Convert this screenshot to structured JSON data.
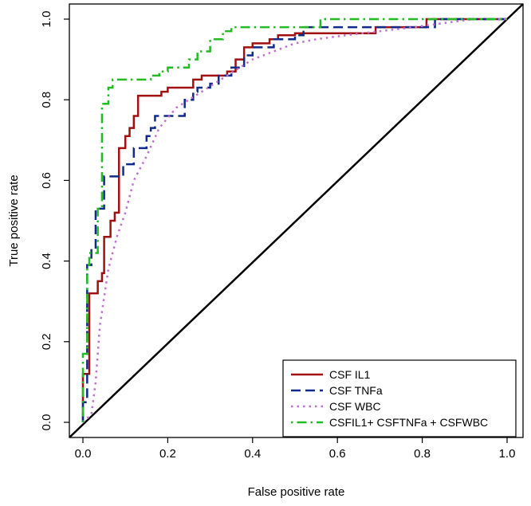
{
  "chart_data": {
    "type": "line",
    "title": "",
    "xlabel": "False positive rate",
    "ylabel": "True positive rate",
    "xlim": [
      0,
      1
    ],
    "ylim": [
      0,
      1
    ],
    "xticks": [
      "0.0",
      "0.2",
      "0.4",
      "0.6",
      "0.8",
      "1.0"
    ],
    "yticks": [
      "0.0",
      "0.2",
      "0.4",
      "0.6",
      "0.8",
      "1.0"
    ],
    "grid": false,
    "legend_position": "bottom-right",
    "series": [
      {
        "name": "CSF IL1",
        "color": "#a01010",
        "line_style": "solid",
        "points": [
          [
            0,
            0
          ],
          [
            0,
            0.12
          ],
          [
            0.015,
            0.12
          ],
          [
            0.015,
            0.32
          ],
          [
            0.035,
            0.32
          ],
          [
            0.035,
            0.35
          ],
          [
            0.045,
            0.35
          ],
          [
            0.045,
            0.37
          ],
          [
            0.05,
            0.37
          ],
          [
            0.05,
            0.46
          ],
          [
            0.065,
            0.46
          ],
          [
            0.065,
            0.5
          ],
          [
            0.075,
            0.5
          ],
          [
            0.075,
            0.52
          ],
          [
            0.085,
            0.52
          ],
          [
            0.085,
            0.68
          ],
          [
            0.1,
            0.68
          ],
          [
            0.1,
            0.71
          ],
          [
            0.11,
            0.71
          ],
          [
            0.11,
            0.73
          ],
          [
            0.12,
            0.73
          ],
          [
            0.12,
            0.76
          ],
          [
            0.13,
            0.76
          ],
          [
            0.13,
            0.81
          ],
          [
            0.185,
            0.81
          ],
          [
            0.185,
            0.82
          ],
          [
            0.2,
            0.82
          ],
          [
            0.2,
            0.83
          ],
          [
            0.26,
            0.83
          ],
          [
            0.26,
            0.85
          ],
          [
            0.28,
            0.85
          ],
          [
            0.28,
            0.86
          ],
          [
            0.34,
            0.86
          ],
          [
            0.34,
            0.87
          ],
          [
            0.36,
            0.87
          ],
          [
            0.36,
            0.9
          ],
          [
            0.38,
            0.9
          ],
          [
            0.38,
            0.93
          ],
          [
            0.4,
            0.93
          ],
          [
            0.4,
            0.94
          ],
          [
            0.44,
            0.94
          ],
          [
            0.44,
            0.95
          ],
          [
            0.46,
            0.95
          ],
          [
            0.46,
            0.96
          ],
          [
            0.5,
            0.96
          ],
          [
            0.5,
            0.965
          ],
          [
            0.69,
            0.965
          ],
          [
            0.69,
            0.98
          ],
          [
            0.81,
            0.98
          ],
          [
            0.81,
            1.0
          ],
          [
            1.0,
            1.0
          ]
        ]
      },
      {
        "name": "CSF TNFa",
        "color": "#102a8a",
        "line_style": "dashed",
        "points": [
          [
            0,
            0
          ],
          [
            0,
            0.05
          ],
          [
            0.01,
            0.05
          ],
          [
            0.01,
            0.39
          ],
          [
            0.02,
            0.39
          ],
          [
            0.02,
            0.43
          ],
          [
            0.03,
            0.43
          ],
          [
            0.03,
            0.53
          ],
          [
            0.05,
            0.53
          ],
          [
            0.05,
            0.61
          ],
          [
            0.095,
            0.61
          ],
          [
            0.095,
            0.64
          ],
          [
            0.12,
            0.64
          ],
          [
            0.12,
            0.68
          ],
          [
            0.15,
            0.68
          ],
          [
            0.15,
            0.71
          ],
          [
            0.16,
            0.71
          ],
          [
            0.16,
            0.73
          ],
          [
            0.17,
            0.73
          ],
          [
            0.17,
            0.76
          ],
          [
            0.24,
            0.76
          ],
          [
            0.24,
            0.8
          ],
          [
            0.26,
            0.8
          ],
          [
            0.26,
            0.82
          ],
          [
            0.27,
            0.82
          ],
          [
            0.27,
            0.83
          ],
          [
            0.3,
            0.83
          ],
          [
            0.3,
            0.84
          ],
          [
            0.32,
            0.84
          ],
          [
            0.32,
            0.86
          ],
          [
            0.35,
            0.86
          ],
          [
            0.35,
            0.88
          ],
          [
            0.38,
            0.88
          ],
          [
            0.38,
            0.91
          ],
          [
            0.4,
            0.91
          ],
          [
            0.4,
            0.93
          ],
          [
            0.45,
            0.93
          ],
          [
            0.45,
            0.95
          ],
          [
            0.5,
            0.95
          ],
          [
            0.5,
            0.96
          ],
          [
            0.52,
            0.96
          ],
          [
            0.52,
            0.98
          ],
          [
            0.83,
            0.98
          ],
          [
            0.83,
            1.0
          ],
          [
            1.0,
            1.0
          ]
        ]
      },
      {
        "name": "CSF WBC",
        "color": "#c070d0",
        "line_style": "dotted",
        "points": [
          [
            0,
            0
          ],
          [
            0.02,
            0.02
          ],
          [
            0.03,
            0.1
          ],
          [
            0.04,
            0.24
          ],
          [
            0.06,
            0.38
          ],
          [
            0.08,
            0.46
          ],
          [
            0.1,
            0.52
          ],
          [
            0.12,
            0.6
          ],
          [
            0.15,
            0.66
          ],
          [
            0.18,
            0.73
          ],
          [
            0.22,
            0.78
          ],
          [
            0.28,
            0.82
          ],
          [
            0.34,
            0.86
          ],
          [
            0.4,
            0.9
          ],
          [
            0.45,
            0.92
          ],
          [
            0.5,
            0.94
          ],
          [
            0.55,
            0.95
          ],
          [
            0.62,
            0.96
          ],
          [
            0.7,
            0.97
          ],
          [
            0.78,
            0.98
          ],
          [
            0.85,
            0.99
          ],
          [
            0.92,
            1.0
          ],
          [
            1.0,
            1.0
          ]
        ]
      },
      {
        "name": "CSFIL1+ CSFTNFa + CSFWBC",
        "color": "#22bb22",
        "line_style": "dotdash",
        "points": [
          [
            0,
            0
          ],
          [
            0,
            0.17
          ],
          [
            0.01,
            0.17
          ],
          [
            0.01,
            0.39
          ],
          [
            0.015,
            0.39
          ],
          [
            0.015,
            0.42
          ],
          [
            0.035,
            0.42
          ],
          [
            0.035,
            0.53
          ],
          [
            0.045,
            0.53
          ],
          [
            0.045,
            0.79
          ],
          [
            0.06,
            0.79
          ],
          [
            0.06,
            0.83
          ],
          [
            0.07,
            0.83
          ],
          [
            0.07,
            0.85
          ],
          [
            0.16,
            0.85
          ],
          [
            0.16,
            0.86
          ],
          [
            0.18,
            0.86
          ],
          [
            0.18,
            0.87
          ],
          [
            0.2,
            0.87
          ],
          [
            0.2,
            0.88
          ],
          [
            0.25,
            0.88
          ],
          [
            0.25,
            0.9
          ],
          [
            0.27,
            0.9
          ],
          [
            0.27,
            0.92
          ],
          [
            0.3,
            0.92
          ],
          [
            0.3,
            0.95
          ],
          [
            0.33,
            0.95
          ],
          [
            0.33,
            0.97
          ],
          [
            0.35,
            0.97
          ],
          [
            0.35,
            0.98
          ],
          [
            0.56,
            0.98
          ],
          [
            0.56,
            1.0
          ],
          [
            1.0,
            1.0
          ]
        ]
      }
    ],
    "reference_line": {
      "color": "#000000",
      "points": [
        [
          0,
          0
        ],
        [
          1,
          1
        ]
      ]
    }
  }
}
